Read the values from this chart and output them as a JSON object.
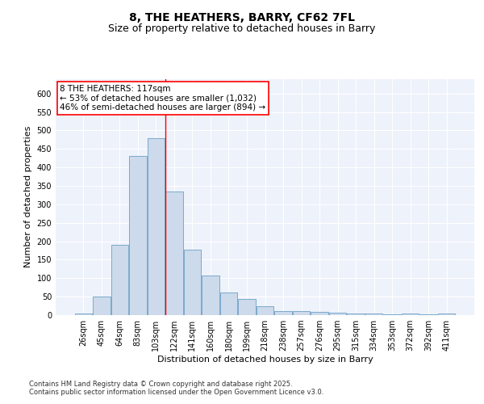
{
  "title_line1": "8, THE HEATHERS, BARRY, CF62 7FL",
  "title_line2": "Size of property relative to detached houses in Barry",
  "xlabel": "Distribution of detached houses by size in Barry",
  "ylabel": "Number of detached properties",
  "categories": [
    "26sqm",
    "45sqm",
    "64sqm",
    "83sqm",
    "103sqm",
    "122sqm",
    "141sqm",
    "160sqm",
    "180sqm",
    "199sqm",
    "218sqm",
    "238sqm",
    "257sqm",
    "276sqm",
    "295sqm",
    "315sqm",
    "334sqm",
    "353sqm",
    "372sqm",
    "392sqm",
    "411sqm"
  ],
  "values": [
    5,
    50,
    190,
    430,
    480,
    335,
    178,
    108,
    62,
    44,
    23,
    11,
    11,
    8,
    7,
    5,
    4,
    3,
    5,
    3,
    4
  ],
  "bar_color": "#ccdaeb",
  "bar_edge_color": "#7aaacb",
  "annotation_line1": "8 THE HEATHERS: 117sqm",
  "annotation_line2": "← 53% of detached houses are smaller (1,032)",
  "annotation_line3": "46% of semi-detached houses are larger (894) →",
  "red_line_x": 4.5,
  "ylim": [
    0,
    640
  ],
  "yticks": [
    0,
    50,
    100,
    150,
    200,
    250,
    300,
    350,
    400,
    450,
    500,
    550,
    600
  ],
  "background_color": "#eef2fb",
  "grid_color": "#ffffff",
  "footer_line1": "Contains HM Land Registry data © Crown copyright and database right 2025.",
  "footer_line2": "Contains public sector information licensed under the Open Government Licence v3.0.",
  "title_fontsize": 10,
  "subtitle_fontsize": 9,
  "tick_fontsize": 7,
  "ylabel_fontsize": 8,
  "xlabel_fontsize": 8,
  "annotation_fontsize": 7.5,
  "footer_fontsize": 6
}
